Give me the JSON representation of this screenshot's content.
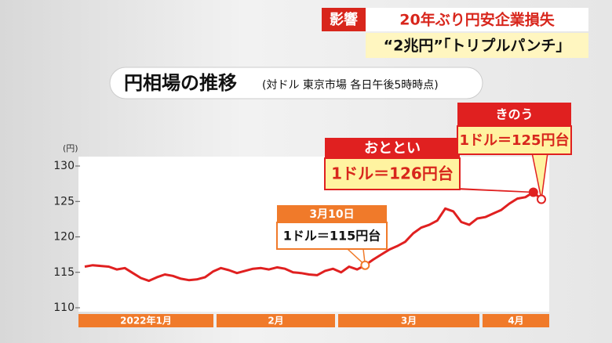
{
  "header": {
    "tag": "影響",
    "headline": "20年ぶり円安企業損失",
    "subline": "“2兆円”「トリプルパンチ」"
  },
  "chart_data": {
    "type": "line",
    "title": "円相場の推移",
    "subtitle": "(対ドル 東京市場 各日午後5時時点)",
    "y_label": "(円)",
    "periods": [
      "2022年1月",
      "2月",
      "3月",
      "4月"
    ],
    "series": [
      {
        "name": null,
        "color": "#e02020",
        "values": [
          115.8,
          116.0,
          115.9,
          115.8,
          115.4,
          115.6,
          114.9,
          114.2,
          113.8,
          114.3,
          114.7,
          114.5,
          114.1,
          113.9,
          114.0,
          114.3,
          115.1,
          115.6,
          115.3,
          114.9,
          115.2,
          115.5,
          115.6,
          115.4,
          115.7,
          115.5,
          115.0,
          114.9,
          114.7,
          114.6,
          115.2,
          115.5,
          115.0,
          115.8,
          115.4,
          116.0,
          116.8,
          117.5,
          118.2,
          118.7,
          119.3,
          120.5,
          121.3,
          121.7,
          122.3,
          124.0,
          123.6,
          122.1,
          121.7,
          122.6,
          122.8,
          123.3,
          123.8,
          124.7,
          125.4,
          125.6,
          126.3,
          125.3
        ]
      }
    ],
    "ylim": [
      110,
      130
    ],
    "yticks": [
      110,
      115,
      120,
      125,
      130
    ],
    "annotations": [
      {
        "head": "3月10日",
        "body": "1ドル＝115円台"
      },
      {
        "head": "おととい",
        "body": "1ドル＝126円台"
      },
      {
        "head": "きのう",
        "body": "1ドル＝125円台"
      }
    ]
  }
}
